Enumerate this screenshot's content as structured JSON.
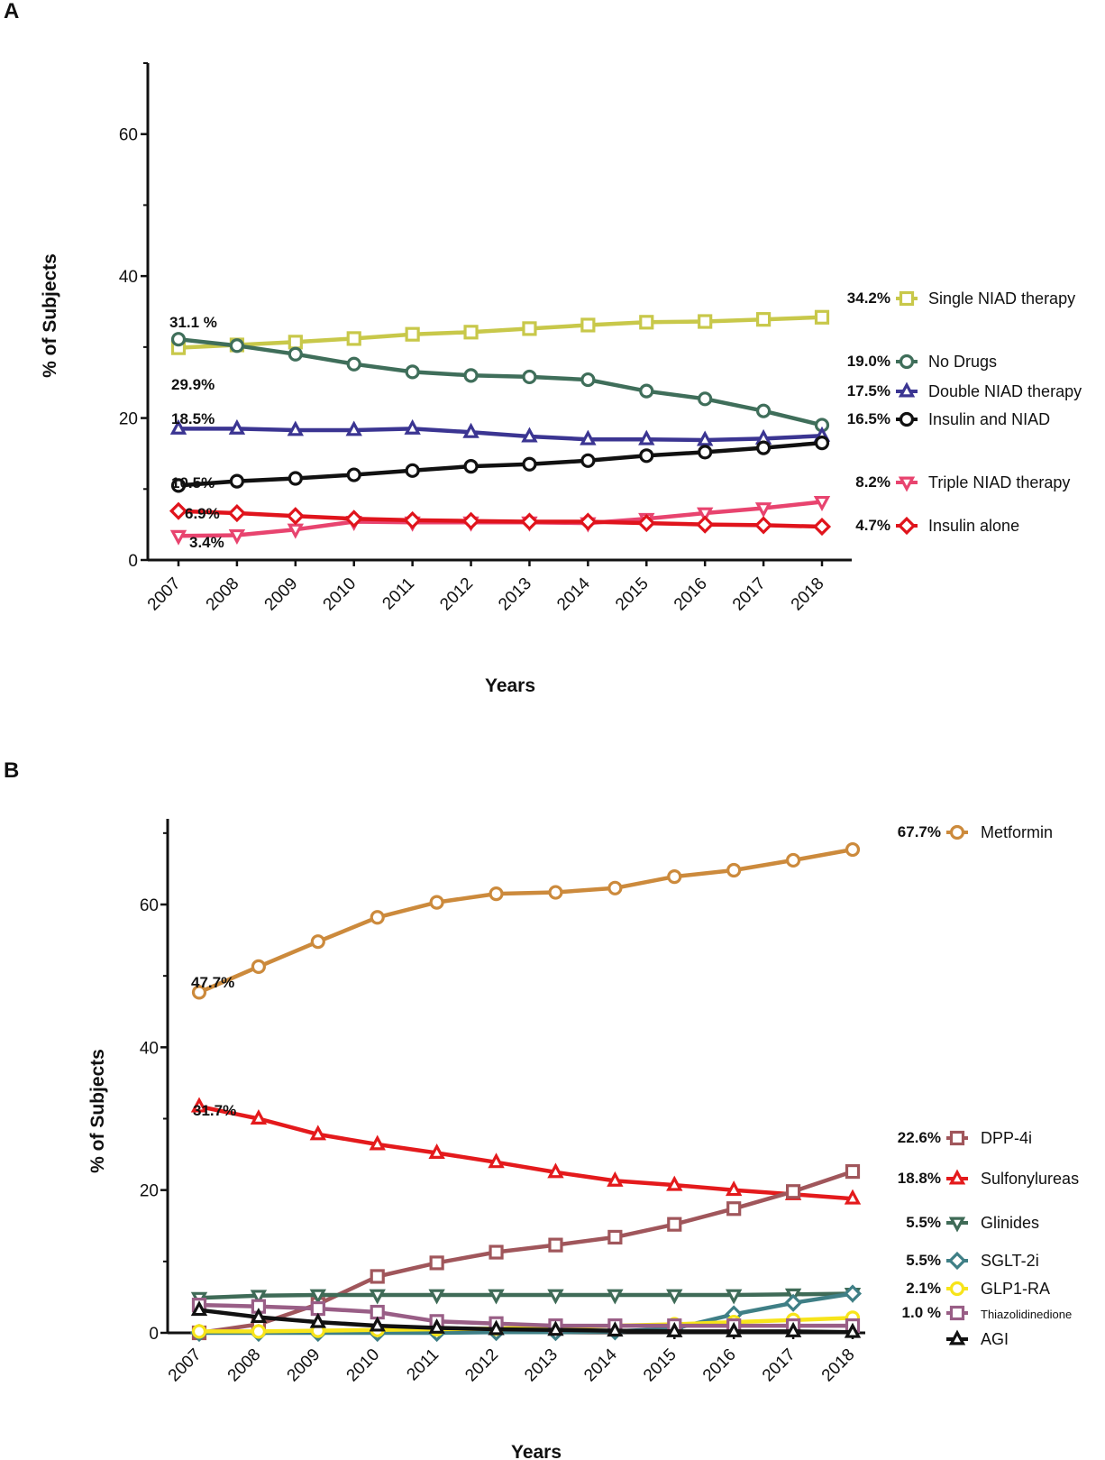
{
  "chart_data": [
    {
      "type": "line",
      "panel_label": "A",
      "title": "",
      "xlabel": "Years",
      "ylabel": "% of Subjects",
      "ylim": [
        0,
        70
      ],
      "yticks": [
        0,
        20,
        40,
        60
      ],
      "x": [
        "2007",
        "2008",
        "2009",
        "2010",
        "2011",
        "2012",
        "2013",
        "2014",
        "2015",
        "2016",
        "2017",
        "2018"
      ],
      "series": [
        {
          "key": "single",
          "name": "Single NIAD therapy",
          "color": "#c8c84a",
          "marker": "square",
          "end_label": "34.2%",
          "values": [
            29.9,
            30.3,
            30.7,
            31.2,
            31.8,
            32.1,
            32.6,
            33.1,
            33.5,
            33.6,
            33.9,
            34.2
          ]
        },
        {
          "key": "nodrugs",
          "name": "No Drugs",
          "color": "#3f6e5a",
          "marker": "circle",
          "end_label": "19.0%",
          "values": [
            31.1,
            30.2,
            29.0,
            27.6,
            26.5,
            26.0,
            25.8,
            25.4,
            23.8,
            22.7,
            21.0,
            19.0
          ]
        },
        {
          "key": "double",
          "name": "Double NIAD therapy",
          "color": "#3b3592",
          "marker": "triangle-up",
          "end_label": "17.5%",
          "values": [
            18.5,
            18.5,
            18.3,
            18.3,
            18.5,
            18.0,
            17.4,
            17.0,
            17.0,
            16.9,
            17.1,
            17.5
          ]
        },
        {
          "key": "insniad",
          "name": "Insulin and NIAD",
          "color": "#111111",
          "marker": "circle",
          "end_label": "16.5%",
          "values": [
            10.5,
            11.1,
            11.5,
            12.0,
            12.6,
            13.2,
            13.5,
            14.0,
            14.7,
            15.2,
            15.8,
            16.5
          ]
        },
        {
          "key": "triple",
          "name": "Triple NIAD therapy",
          "color": "#e8446f",
          "marker": "triangle-down",
          "end_label": "8.2%",
          "values": [
            3.4,
            3.5,
            4.3,
            5.4,
            5.3,
            5.3,
            5.3,
            5.2,
            5.8,
            6.6,
            7.3,
            8.2
          ]
        },
        {
          "key": "insalone",
          "name": "Insulin alone",
          "color": "#e0141c",
          "marker": "diamond",
          "end_label": "4.7%",
          "values": [
            6.9,
            6.6,
            6.2,
            5.8,
            5.6,
            5.5,
            5.4,
            5.4,
            5.2,
            5.0,
            4.9,
            4.7
          ]
        }
      ],
      "annotations": [
        "31.1 %",
        "29.9%",
        "18.5%",
        "10.5%",
        "6.9%",
        "3.4%"
      ]
    },
    {
      "type": "line",
      "panel_label": "B",
      "title": "",
      "xlabel": "Years",
      "ylabel": "% of Subjects",
      "ylim": [
        0,
        72
      ],
      "yticks": [
        0,
        20,
        40,
        60
      ],
      "x": [
        "2007",
        "2008",
        "2009",
        "2010",
        "2011",
        "2012",
        "2013",
        "2014",
        "2015",
        "2016",
        "2017",
        "2018"
      ],
      "series": [
        {
          "key": "metformin",
          "name": "Metformin",
          "color": "#cc8a3c",
          "marker": "circle",
          "end_label": "67.7%",
          "values": [
            47.7,
            51.3,
            54.8,
            58.2,
            60.3,
            61.5,
            61.7,
            62.3,
            63.9,
            64.8,
            66.2,
            67.7
          ]
        },
        {
          "key": "sulfonylureas",
          "name": "Sulfonylureas",
          "color": "#e41a1c",
          "marker": "triangle-up",
          "end_label": "18.8%",
          "values": [
            31.7,
            30.0,
            27.8,
            26.4,
            25.2,
            23.9,
            22.5,
            21.3,
            20.7,
            20.0,
            19.4,
            18.8
          ]
        },
        {
          "key": "dpp4i",
          "name": "DPP-4i",
          "color": "#a0565b",
          "marker": "square",
          "end_label": "22.6%",
          "values": [
            0.0,
            1.2,
            4.0,
            7.9,
            9.8,
            11.3,
            12.3,
            13.4,
            15.2,
            17.4,
            19.8,
            22.6
          ]
        },
        {
          "key": "glinides",
          "name": "Glinides",
          "color": "#3f6b57",
          "marker": "triangle-down",
          "end_label": "5.5%",
          "values": [
            4.9,
            5.2,
            5.3,
            5.3,
            5.3,
            5.3,
            5.3,
            5.3,
            5.3,
            5.3,
            5.4,
            5.5
          ]
        },
        {
          "key": "sglt2i",
          "name": "SGLT-2i",
          "color": "#3f7f86",
          "marker": "diamond",
          "end_label": "5.5%",
          "values": [
            0.0,
            0.0,
            0.0,
            0.0,
            0.0,
            0.1,
            0.1,
            0.2,
            0.6,
            2.6,
            4.2,
            5.5
          ]
        },
        {
          "key": "glp1ra",
          "name": "GLP1-RA",
          "color": "#f7e41a",
          "marker": "circle",
          "end_label": "2.1%",
          "values": [
            0.2,
            0.2,
            0.3,
            0.4,
            0.5,
            0.6,
            0.8,
            1.0,
            1.2,
            1.5,
            1.8,
            2.1
          ]
        },
        {
          "key": "tzd",
          "name": "Thiazolidinedione",
          "color": "#995e86",
          "marker": "square",
          "end_label": "1.0 %",
          "values": [
            3.9,
            3.7,
            3.4,
            2.9,
            1.6,
            1.3,
            1.0,
            1.0,
            1.0,
            1.0,
            1.0,
            1.0
          ]
        },
        {
          "key": "agi",
          "name": "AGI",
          "color": "#111111",
          "marker": "triangle-up",
          "end_label": "",
          "values": [
            3.2,
            2.2,
            1.5,
            1.0,
            0.7,
            0.5,
            0.4,
            0.3,
            0.2,
            0.2,
            0.2,
            0.1
          ]
        }
      ],
      "annotations": [
        "47.7%",
        "31.7%"
      ]
    }
  ]
}
